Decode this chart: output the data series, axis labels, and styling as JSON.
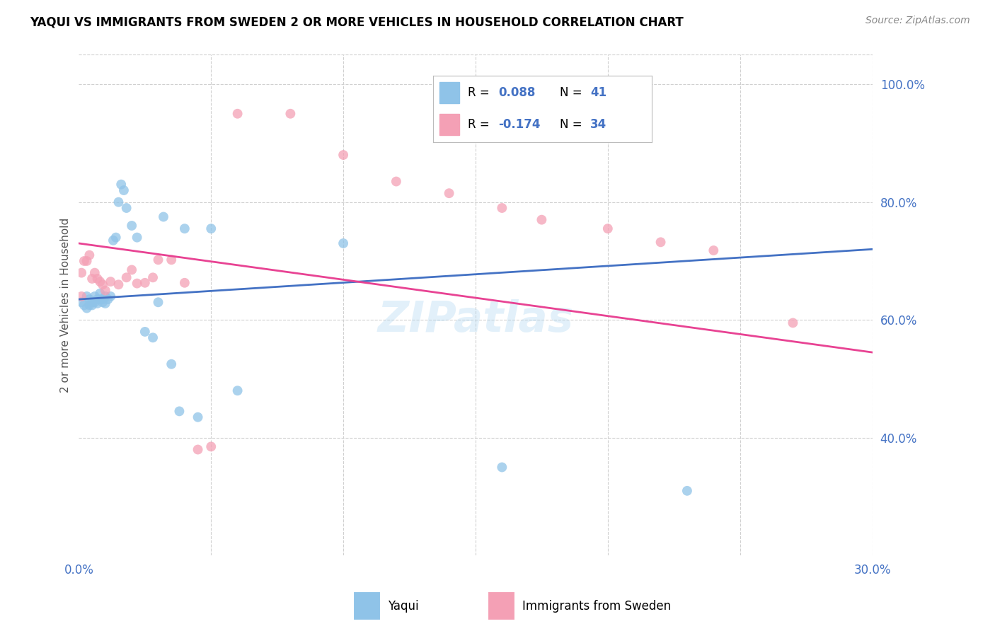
{
  "title": "YAQUI VS IMMIGRANTS FROM SWEDEN 2 OR MORE VEHICLES IN HOUSEHOLD CORRELATION CHART",
  "source": "Source: ZipAtlas.com",
  "ylabel": "2 or more Vehicles in Household",
  "xmin": 0.0,
  "xmax": 0.3,
  "ymin": 0.2,
  "ymax": 1.05,
  "color_blue": "#8fc3e8",
  "color_pink": "#f4a0b5",
  "line_blue": "#4472c4",
  "line_pink": "#e84393",
  "background_color": "#ffffff",
  "grid_color": "#cccccc",
  "yaqui_x": [
    0.001,
    0.002,
    0.003,
    0.003,
    0.004,
    0.004,
    0.005,
    0.005,
    0.006,
    0.006,
    0.007,
    0.007,
    0.008,
    0.008,
    0.009,
    0.009,
    0.01,
    0.01,
    0.011,
    0.012,
    0.013,
    0.014,
    0.015,
    0.016,
    0.017,
    0.018,
    0.02,
    0.022,
    0.025,
    0.028,
    0.03,
    0.032,
    0.035,
    0.038,
    0.04,
    0.045,
    0.05,
    0.06,
    0.1,
    0.16,
    0.23
  ],
  "yaqui_y": [
    0.63,
    0.625,
    0.64,
    0.62,
    0.635,
    0.625,
    0.63,
    0.625,
    0.64,
    0.63,
    0.635,
    0.628,
    0.635,
    0.645,
    0.63,
    0.635,
    0.64,
    0.628,
    0.635,
    0.64,
    0.735,
    0.74,
    0.8,
    0.83,
    0.82,
    0.79,
    0.76,
    0.74,
    0.58,
    0.57,
    0.63,
    0.775,
    0.525,
    0.445,
    0.755,
    0.435,
    0.755,
    0.48,
    0.73,
    0.35,
    0.31
  ],
  "sweden_x": [
    0.001,
    0.001,
    0.002,
    0.003,
    0.004,
    0.005,
    0.006,
    0.007,
    0.008,
    0.009,
    0.01,
    0.012,
    0.015,
    0.018,
    0.02,
    0.022,
    0.025,
    0.028,
    0.03,
    0.035,
    0.04,
    0.045,
    0.05,
    0.06,
    0.08,
    0.1,
    0.12,
    0.14,
    0.16,
    0.175,
    0.2,
    0.22,
    0.24,
    0.27
  ],
  "sweden_y": [
    0.64,
    0.68,
    0.7,
    0.7,
    0.71,
    0.67,
    0.68,
    0.67,
    0.665,
    0.66,
    0.65,
    0.665,
    0.66,
    0.672,
    0.685,
    0.662,
    0.663,
    0.672,
    0.702,
    0.702,
    0.663,
    0.38,
    0.385,
    0.95,
    0.95,
    0.88,
    0.835,
    0.815,
    0.79,
    0.77,
    0.755,
    0.732,
    0.718,
    0.595
  ]
}
